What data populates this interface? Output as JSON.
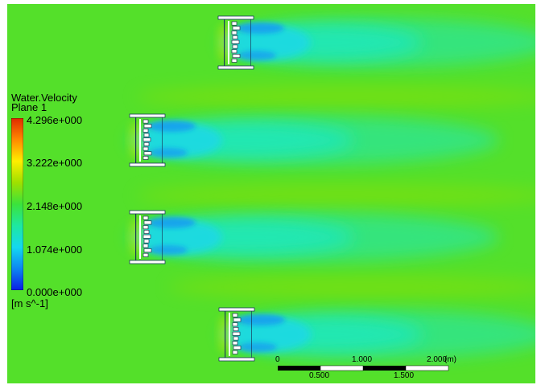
{
  "legend": {
    "title": "Water.Velocity",
    "subtitle": "Plane 1",
    "unit": "[m s^-1]",
    "ticks": [
      "4.296e+000",
      "3.222e+000",
      "2.148e+000",
      "1.074e+000",
      "0.000e+000"
    ],
    "colors": [
      "#e02a00",
      "#ff8a00",
      "#ffee00",
      "#9ee000",
      "#3be33b",
      "#1ee8a0",
      "#14d8f0",
      "#0d86f0",
      "#0a1ee6"
    ]
  },
  "field": {
    "background": "#54e02a",
    "wake_color": "#1ee8c0",
    "core_color": "#12a0f0"
  },
  "scale_bar": {
    "upper_labels": [
      "0",
      "1.000",
      "2.000"
    ],
    "lower_labels": [
      "0.500",
      "1.500"
    ],
    "unit": "(m)"
  }
}
